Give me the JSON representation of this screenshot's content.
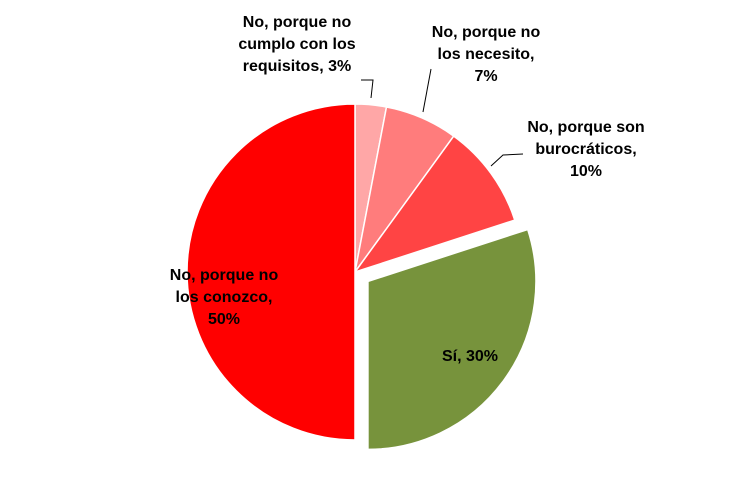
{
  "chart_data": {
    "type": "pie",
    "title": "",
    "categories": [
      "No, porque no cumplo con los requisitos",
      "No, porque no los necesito",
      "No, porque son burocráticos",
      "Sí",
      "No, porque no los conozco"
    ],
    "values": [
      3,
      7,
      10,
      30,
      50
    ],
    "unit": "%",
    "exploded": [
      "Sí"
    ],
    "colors": [
      "#FFA7A7",
      "#FF7C7C",
      "#FF4444",
      "#77933C",
      "#FF0000"
    ],
    "data_labels": [
      [
        "No, porque no",
        "cumplo con los",
        "requisitos, 3%"
      ],
      [
        "No, porque no",
        "los necesito,",
        "7%"
      ],
      [
        "No, porque son",
        "burocráticos,",
        "10%"
      ],
      [
        "Sí, 30%"
      ],
      [
        "No, porque no",
        "los conozco,",
        "50%"
      ]
    ],
    "legend": "none",
    "start_angle_deg": 0,
    "direction": "clockwise"
  }
}
